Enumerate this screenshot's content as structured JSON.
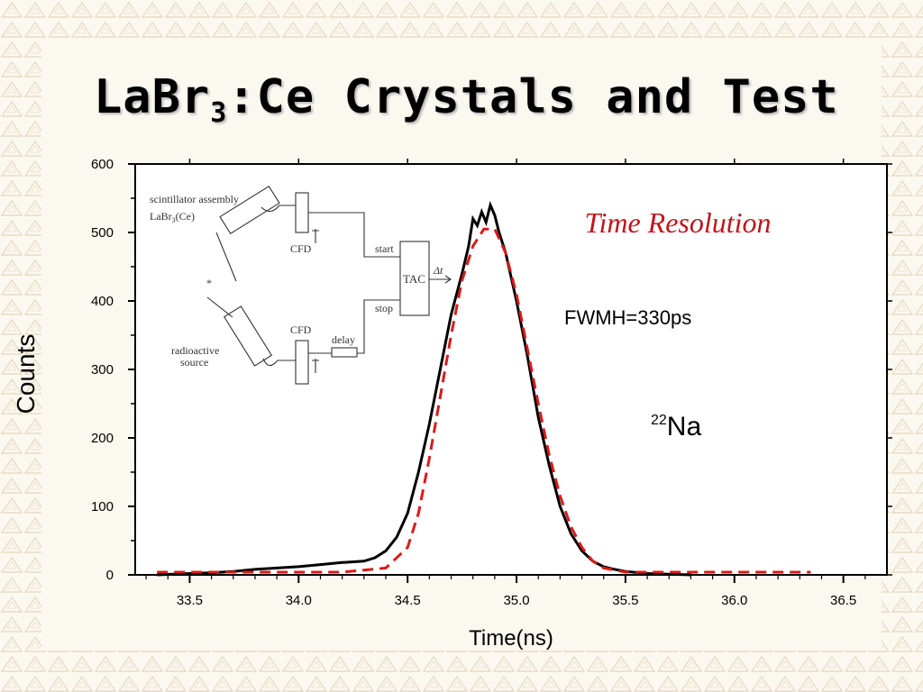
{
  "slide": {
    "title_main": "LaBr",
    "title_sub": "3",
    "title_rest": ":Ce Crystals and Test"
  },
  "colors": {
    "background": "#fbf8f0",
    "pattern": "#e8dcc4",
    "measured": "#000000",
    "fit": "#d91b1b",
    "annotation": "#c0141b"
  },
  "chart_data": {
    "type": "line",
    "xlabel": "Time(ns)",
    "ylabel": "Counts",
    "xlim": [
      33.25,
      36.7
    ],
    "ylim": [
      0,
      600
    ],
    "x_ticks": [
      "33.5",
      "34.0",
      "34.5",
      "35.0",
      "35.5",
      "36.0",
      "36.5"
    ],
    "y_ticks": [
      "0",
      "100",
      "200",
      "300",
      "400",
      "500",
      "600"
    ],
    "annotations": {
      "time_resolution": "Time Resolution",
      "fwhm": "FWMH=330ps",
      "isotope_mass": "22",
      "isotope_symbol": "Na"
    },
    "series": [
      {
        "style": "solid-black",
        "x": [
          33.35,
          33.5,
          33.6,
          33.7,
          33.8,
          33.9,
          34.0,
          34.1,
          34.2,
          34.3,
          34.35,
          34.4,
          34.45,
          34.5,
          34.55,
          34.6,
          34.65,
          34.7,
          34.75,
          34.78,
          34.8,
          34.82,
          34.84,
          34.86,
          34.88,
          34.9,
          34.92,
          34.95,
          35.0,
          35.05,
          35.1,
          35.15,
          35.2,
          35.25,
          35.3,
          35.35,
          35.4,
          35.45,
          35.5,
          35.6,
          35.7,
          35.8
        ],
        "y": [
          0,
          2,
          3,
          5,
          8,
          10,
          12,
          15,
          18,
          20,
          25,
          35,
          55,
          90,
          150,
          220,
          300,
          380,
          440,
          480,
          520,
          510,
          530,
          515,
          540,
          525,
          500,
          470,
          400,
          320,
          230,
          160,
          100,
          60,
          35,
          20,
          12,
          8,
          5,
          2,
          1,
          0
        ]
      },
      {
        "style": "dashed-red",
        "x": [
          33.35,
          33.6,
          33.9,
          34.2,
          34.4,
          34.5,
          34.55,
          34.6,
          34.65,
          34.7,
          34.75,
          34.8,
          34.85,
          34.9,
          34.95,
          35.0,
          35.05,
          35.1,
          35.15,
          35.2,
          35.25,
          35.3,
          35.35,
          35.4,
          35.5,
          35.6,
          35.8,
          36.1,
          36.35
        ],
        "y": [
          4,
          4,
          4,
          4,
          10,
          40,
          90,
          170,
          260,
          350,
          430,
          480,
          505,
          505,
          470,
          410,
          330,
          250,
          175,
          115,
          70,
          40,
          20,
          10,
          4,
          4,
          4,
          4,
          4
        ]
      }
    ],
    "inset_diagram": {
      "labels": [
        "scintillator assembly",
        "LaBr",
        "3",
        "(Ce)",
        "CFD",
        "CFD",
        "start",
        "stop",
        "TAC",
        "Δt",
        "delay",
        "radioactive",
        "source",
        "*"
      ]
    }
  }
}
